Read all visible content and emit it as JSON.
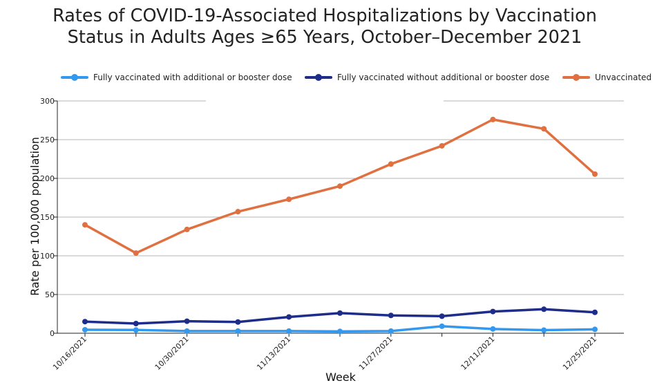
{
  "chart_data": {
    "type": "line",
    "title_line1": "Rates of COVID-19-Associated Hospitalizations by Vaccination",
    "title_line2": "Status in Adults Ages ≥65 Years, October–December 2021",
    "xlabel": "Week",
    "ylabel": "Rate per 100,000 population",
    "ylim": [
      0,
      300
    ],
    "yticks": [
      0,
      50,
      100,
      150,
      200,
      250,
      300
    ],
    "grid": true,
    "legend_position": "top",
    "x": [
      "10/16/2021",
      "10/23/2021",
      "10/30/2021",
      "11/06/2021",
      "11/13/2021",
      "11/20/2021",
      "11/27/2021",
      "12/04/2021",
      "12/11/2021",
      "12/18/2021",
      "12/25/2021"
    ],
    "xtick_labels": [
      "10/16/2021",
      "",
      "10/30/2021",
      "",
      "11/13/2021",
      "",
      "11/27/2021",
      "",
      "12/11/2021",
      "",
      "12/25/2021"
    ],
    "series": [
      {
        "name": "Fully vaccinated with additional or booster dose",
        "color": "#3399ee",
        "values": [
          4.5,
          4.2,
          2.8,
          2.8,
          2.8,
          2.3,
          2.8,
          9.0,
          5.5,
          4.0,
          5.0
        ]
      },
      {
        "name": "Fully vaccinated without additional or booster dose",
        "color": "#1f2d8a",
        "values": [
          15.0,
          12.5,
          15.5,
          14.5,
          21.0,
          26.0,
          23.0,
          22.0,
          28.0,
          31.0,
          27.0
        ]
      },
      {
        "name": "Unvaccinated",
        "color": "#e07040",
        "values": [
          140.0,
          103.5,
          134.0,
          157.0,
          173.0,
          190.0,
          218.5,
          242.0,
          276.0,
          264.0,
          205.5
        ]
      }
    ]
  }
}
